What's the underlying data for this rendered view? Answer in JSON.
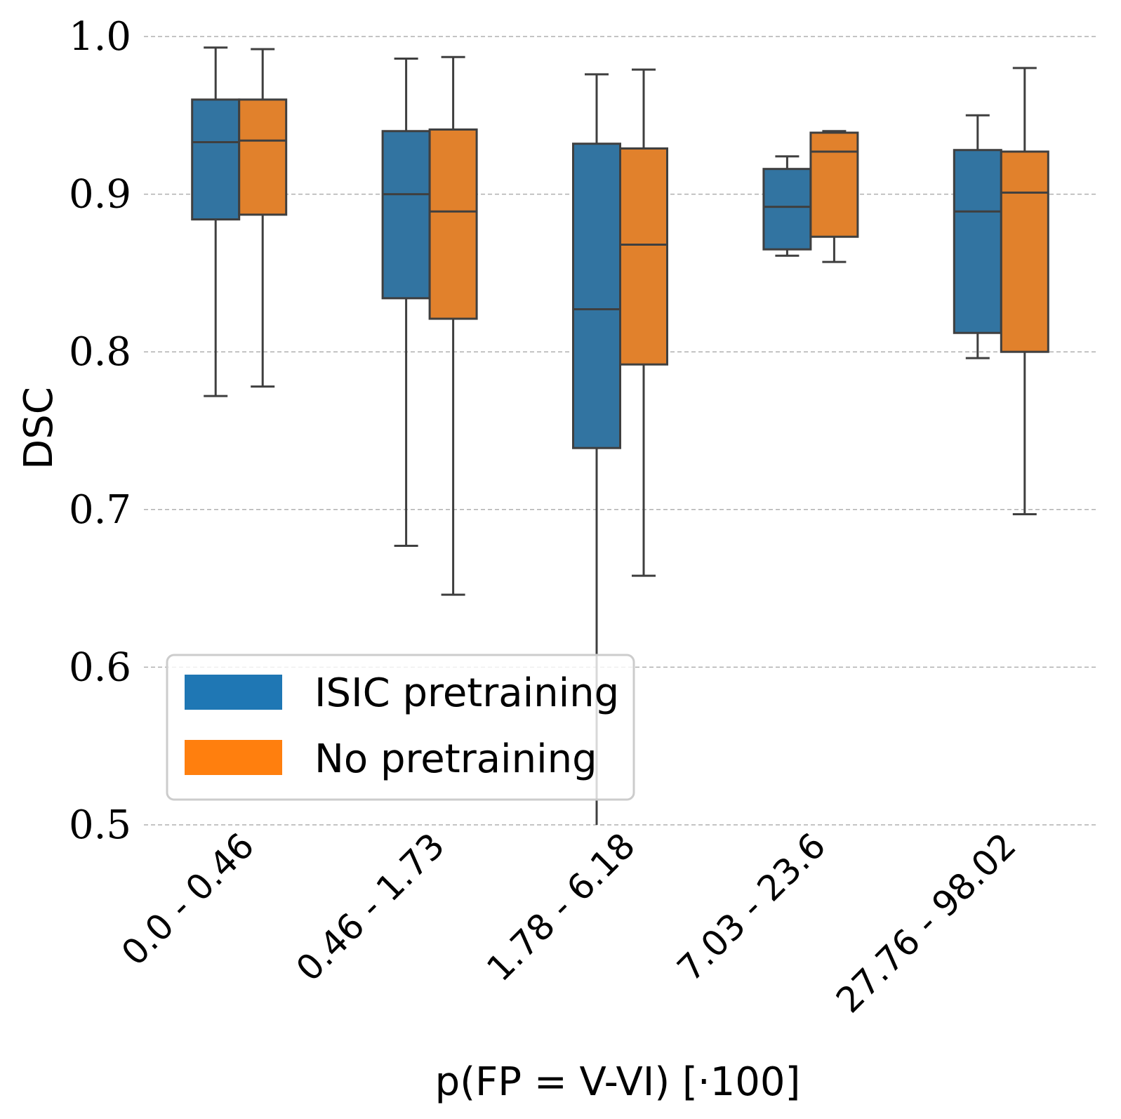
{
  "chart_data": {
    "type": "box",
    "xlabel": "p(FP = V-VI) [·100]",
    "ylabel": "DSC",
    "ylim": [
      0.5,
      1.0
    ],
    "yticks": [
      "0.5",
      "0.6",
      "0.7",
      "0.8",
      "0.9",
      "1.0"
    ],
    "grid": "horizontal dashed",
    "legend_position": "lower-left",
    "categories": [
      "0.0 - 0.46",
      "0.46 - 1.73",
      "1.78 - 6.18",
      "7.03 - 23.6",
      "27.76 - 98.02"
    ],
    "series": [
      {
        "name": "ISIC pretraining",
        "color": "#3274a1",
        "legend_color": "#1f77b4",
        "boxes": [
          {
            "whisker_low": 0.772,
            "q1": 0.884,
            "median": 0.933,
            "q3": 0.96,
            "whisker_high": 0.993
          },
          {
            "whisker_low": 0.677,
            "q1": 0.834,
            "median": 0.9,
            "q3": 0.94,
            "whisker_high": 0.986
          },
          {
            "whisker_low": 0.5,
            "q1": 0.739,
            "median": 0.827,
            "q3": 0.932,
            "whisker_high": 0.976
          },
          {
            "whisker_low": 0.861,
            "q1": 0.865,
            "median": 0.892,
            "q3": 0.916,
            "whisker_high": 0.924
          },
          {
            "whisker_low": 0.796,
            "q1": 0.812,
            "median": 0.889,
            "q3": 0.928,
            "whisker_high": 0.95
          }
        ]
      },
      {
        "name": "No pretraining",
        "color": "#e1812c",
        "legend_color": "#ff7f0e",
        "boxes": [
          {
            "whisker_low": 0.778,
            "q1": 0.887,
            "median": 0.934,
            "q3": 0.96,
            "whisker_high": 0.992
          },
          {
            "whisker_low": 0.646,
            "q1": 0.821,
            "median": 0.889,
            "q3": 0.941,
            "whisker_high": 0.987
          },
          {
            "whisker_low": 0.658,
            "q1": 0.792,
            "median": 0.868,
            "q3": 0.929,
            "whisker_high": 0.979
          },
          {
            "whisker_low": 0.857,
            "q1": 0.873,
            "median": 0.927,
            "q3": 0.939,
            "whisker_high": 0.94
          },
          {
            "whisker_low": 0.697,
            "q1": 0.8,
            "median": 0.901,
            "q3": 0.927,
            "whisker_high": 0.98
          }
        ]
      }
    ]
  }
}
